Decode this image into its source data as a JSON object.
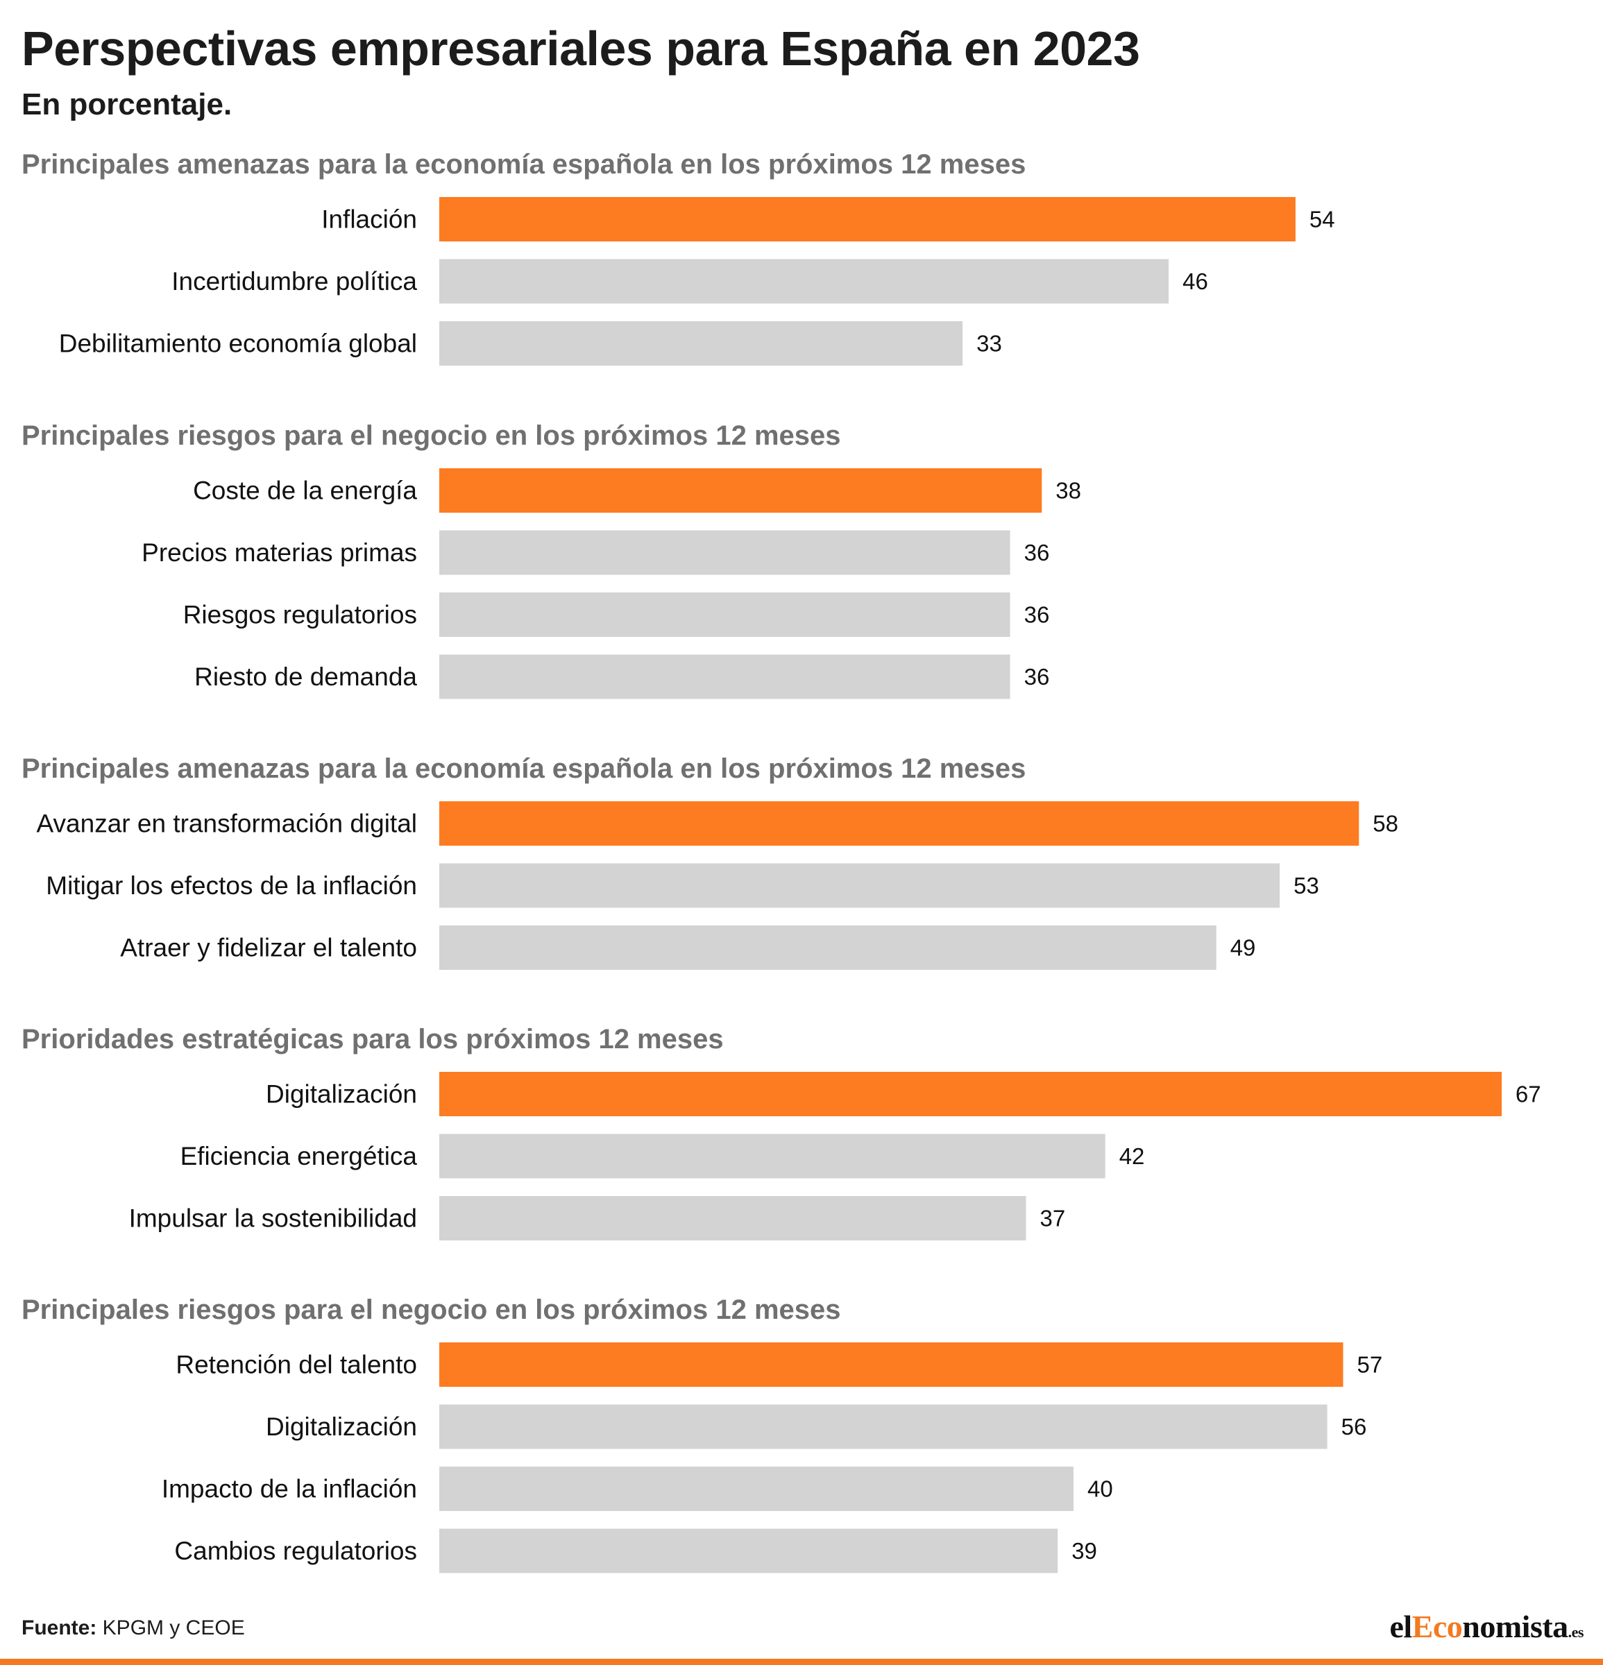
{
  "title": "Perspectivas empresariales para España en 2023",
  "subtitle": "En porcentaje.",
  "source": {
    "label": "Fuente:",
    "text": "KPGM y CEOE"
  },
  "logo": {
    "prefix": "el",
    "accent": "Eco",
    "rest": "nomista",
    "suffix": ".es"
  },
  "colors": {
    "highlight": "#fd7b21",
    "bar": "#d3d3d3",
    "section_title": "#707070",
    "rule": "#f47920"
  },
  "chart_data": [
    {
      "type": "bar",
      "orientation": "horizontal",
      "title": "Principales amenazas para la economía española en los próximos 12 meses",
      "categories": [
        "Inflación",
        "Incertidumbre política",
        "Debilitamiento economía global"
      ],
      "values": [
        54,
        46,
        33
      ],
      "highlight_index": 0
    },
    {
      "type": "bar",
      "orientation": "horizontal",
      "title": "Principales riesgos para el negocio en los próximos 12 meses",
      "categories": [
        "Coste de la energía",
        "Precios materias primas",
        "Riesgos regulatorios",
        "Riesto de demanda"
      ],
      "values": [
        38,
        36,
        36,
        36
      ],
      "highlight_index": 0
    },
    {
      "type": "bar",
      "orientation": "horizontal",
      "title": "Principales amenazas para la economía española en los próximos 12 meses",
      "categories": [
        "Avanzar en transformación digital",
        "Mitigar los efectos de la inflación",
        "Atraer y fidelizar el talento"
      ],
      "values": [
        58,
        53,
        49
      ],
      "highlight_index": 0
    },
    {
      "type": "bar",
      "orientation": "horizontal",
      "title": "Prioridades estratégicas para los próximos 12 meses",
      "categories": [
        "Digitalización",
        "Eficiencia energética",
        "Impulsar la sostenibilidad"
      ],
      "values": [
        67,
        42,
        37
      ],
      "highlight_index": 0
    },
    {
      "type": "bar",
      "orientation": "horizontal",
      "title": "Principales riesgos para el negocio en los próximos 12 meses",
      "categories": [
        "Retención del talento",
        "Digitalización",
        "Impacto de la inflación",
        "Cambios regulatorios"
      ],
      "values": [
        57,
        56,
        40,
        39
      ],
      "highlight_index": 0
    }
  ]
}
